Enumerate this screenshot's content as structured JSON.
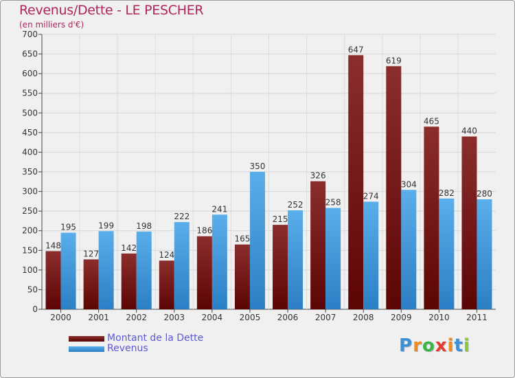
{
  "chart_data": {
    "type": "bar",
    "title": "Revenus/Dette - LE PESCHER",
    "subtitle": "(en milliers d'€)",
    "categories": [
      "2000",
      "2001",
      "2002",
      "2003",
      "2004",
      "2005",
      "2006",
      "2007",
      "2008",
      "2009",
      "2010",
      "2011"
    ],
    "series": [
      {
        "name": "Montant de la Dette",
        "color": "#7a1414",
        "values": [
          148,
          127,
          142,
          124,
          186,
          165,
          215,
          326,
          647,
          619,
          465,
          440
        ]
      },
      {
        "name": "Revenus",
        "color": "#3b9ae1",
        "values": [
          195,
          199,
          198,
          222,
          241,
          350,
          252,
          258,
          274,
          304,
          282,
          280
        ]
      }
    ],
    "ylim": [
      0,
      700
    ],
    "yticks": [
      0,
      50,
      100,
      150,
      200,
      250,
      300,
      350,
      400,
      450,
      500,
      550,
      600,
      650,
      700
    ],
    "grid": true,
    "legend_position": "bottom-left"
  },
  "brand": {
    "letters": [
      "P",
      "r",
      "o",
      "x",
      "i",
      "t",
      "i"
    ],
    "colors": [
      "#3a8fd6",
      "#f08a1c",
      "#3ab54a",
      "#e63b2e",
      "#f08a1c",
      "#3a8fd6",
      "#8cc63f"
    ]
  }
}
